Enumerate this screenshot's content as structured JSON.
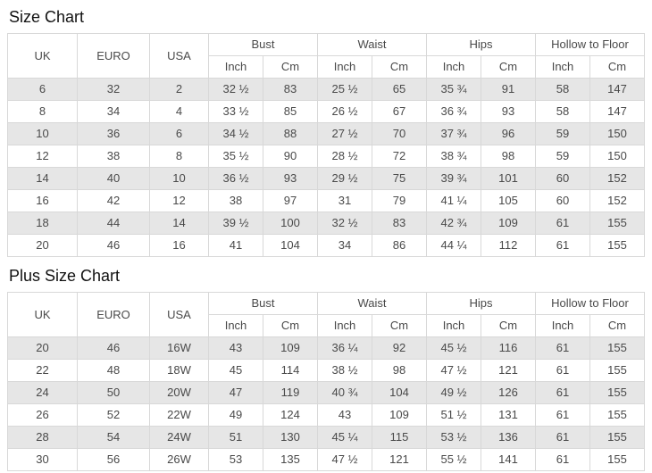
{
  "colors": {
    "row_stripe": "#e6e6e6",
    "table_border": "#d8d8d8",
    "cell_text": "#4a4a4a",
    "title_text": "#111111",
    "background": "#ffffff"
  },
  "chart_data": [
    {
      "type": "table",
      "title": "Size Chart",
      "col_headers": [
        "UK",
        "EURO",
        "USA"
      ],
      "groups": [
        {
          "label": "Bust",
          "sub": [
            "Inch",
            "Cm"
          ]
        },
        {
          "label": "Waist",
          "sub": [
            "Inch",
            "Cm"
          ]
        },
        {
          "label": "Hips",
          "sub": [
            "Inch",
            "Cm"
          ]
        },
        {
          "label": "Hollow to Floor",
          "sub": [
            "Inch",
            "Cm"
          ]
        }
      ],
      "rows": [
        [
          "6",
          "32",
          "2",
          "32 ½",
          "83",
          "25 ½",
          "65",
          "35 ¾",
          "91",
          "58",
          "147"
        ],
        [
          "8",
          "34",
          "4",
          "33 ½",
          "85",
          "26 ½",
          "67",
          "36 ¾",
          "93",
          "58",
          "147"
        ],
        [
          "10",
          "36",
          "6",
          "34 ½",
          "88",
          "27 ½",
          "70",
          "37 ¾",
          "96",
          "59",
          "150"
        ],
        [
          "12",
          "38",
          "8",
          "35 ½",
          "90",
          "28 ½",
          "72",
          "38 ¾",
          "98",
          "59",
          "150"
        ],
        [
          "14",
          "40",
          "10",
          "36 ½",
          "93",
          "29 ½",
          "75",
          "39 ¾",
          "101",
          "60",
          "152"
        ],
        [
          "16",
          "42",
          "12",
          "38",
          "97",
          "31",
          "79",
          "41 ¼",
          "105",
          "60",
          "152"
        ],
        [
          "18",
          "44",
          "14",
          "39 ½",
          "100",
          "32 ½",
          "83",
          "42 ¾",
          "109",
          "61",
          "155"
        ],
        [
          "20",
          "46",
          "16",
          "41",
          "104",
          "34",
          "86",
          "44 ¼",
          "112",
          "61",
          "155"
        ]
      ]
    },
    {
      "type": "table",
      "title": "Plus Size Chart",
      "col_headers": [
        "UK",
        "EURO",
        "USA"
      ],
      "groups": [
        {
          "label": "Bust",
          "sub": [
            "Inch",
            "Cm"
          ]
        },
        {
          "label": "Waist",
          "sub": [
            "Inch",
            "Cm"
          ]
        },
        {
          "label": "Hips",
          "sub": [
            "Inch",
            "Cm"
          ]
        },
        {
          "label": "Hollow to Floor",
          "sub": [
            "Inch",
            "Cm"
          ]
        }
      ],
      "rows": [
        [
          "20",
          "46",
          "16W",
          "43",
          "109",
          "36 ¼",
          "92",
          "45 ½",
          "116",
          "61",
          "155"
        ],
        [
          "22",
          "48",
          "18W",
          "45",
          "114",
          "38 ½",
          "98",
          "47 ½",
          "121",
          "61",
          "155"
        ],
        [
          "24",
          "50",
          "20W",
          "47",
          "119",
          "40 ¾",
          "104",
          "49 ½",
          "126",
          "61",
          "155"
        ],
        [
          "26",
          "52",
          "22W",
          "49",
          "124",
          "43",
          "109",
          "51 ½",
          "131",
          "61",
          "155"
        ],
        [
          "28",
          "54",
          "24W",
          "51",
          "130",
          "45 ¼",
          "115",
          "53 ½",
          "136",
          "61",
          "155"
        ],
        [
          "30",
          "56",
          "26W",
          "53",
          "135",
          "47 ½",
          "121",
          "55 ½",
          "141",
          "61",
          "155"
        ]
      ]
    }
  ]
}
